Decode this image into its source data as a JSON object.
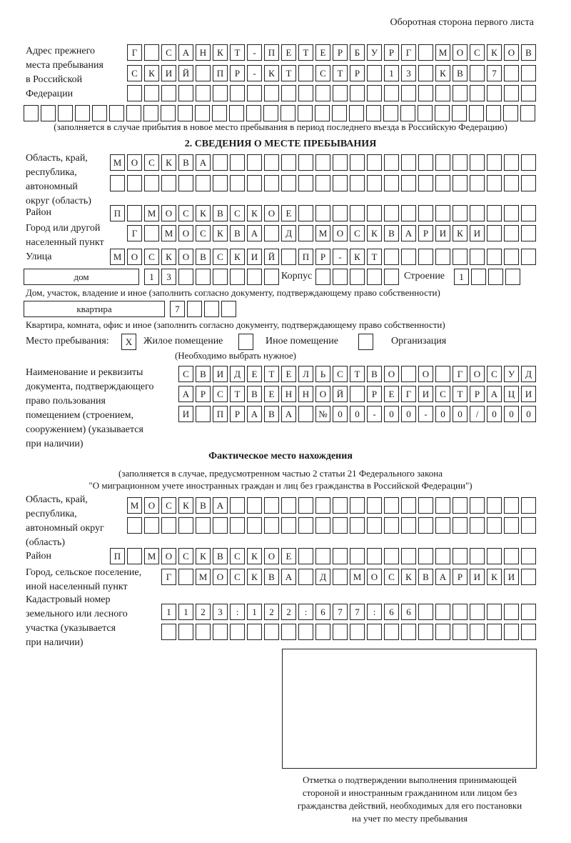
{
  "header": {
    "side_note": "Оборотная сторона первого листа"
  },
  "previous_address": {
    "label": [
      "Адрес прежнего",
      "места пребывания",
      "в Российской",
      "Федерации"
    ],
    "rows": [
      "Г САНКТ-ПЕТЕРБУРГ МОСКОВ",
      "СКИЙ ПР-КТ СТР 13 КВ 7",
      "",
      ""
    ],
    "note": "(заполняется в случае прибытия в новое место пребывания в период последнего въезда в Российскую Федерацию)"
  },
  "section2": {
    "title": "2. СВЕДЕНИЯ О МЕСТЕ ПРЕБЫВАНИЯ",
    "region_label": [
      "Область, край,",
      "республика,",
      "автономный",
      "округ (область)"
    ],
    "region_rows": [
      "МОСКВА",
      ""
    ],
    "district_label": "Район",
    "district": "П МОСКВСКОЕ",
    "city_label": [
      "Город или другой",
      "населенный пункт"
    ],
    "city": "Г МОСКВА Д МОСКВАРИКИ",
    "street_label": "Улица",
    "street": "МОСКОВСКИЙ ПР-КТ",
    "house_type": "дом",
    "house_number": "13",
    "korpus_label": "Корпус",
    "korpus": "",
    "building_label": "Строение",
    "building": "1",
    "house_note": "Дом, участок, владение и иное (заполнить согласно документу, подтверждающему право собственности)",
    "apt_type": "квартира",
    "apt_number": "7",
    "apt_note": "Квартира, комната, офис и иное (заполнить согласно документу, подтверждающему право собственности)",
    "stay_place_label": "Место пребывания:",
    "options": [
      {
        "label": "Жилое помещение",
        "mark": "X",
        "checked": true
      },
      {
        "label": "Иное помещение",
        "mark": "",
        "checked": false
      },
      {
        "label": "Организация",
        "mark": "",
        "checked": false
      }
    ],
    "choose_note": "(Необходимо выбрать нужное)",
    "document_label": [
      "Наименование и реквизиты",
      "документа, подтверждающего",
      "право пользования",
      "помещением (строением,",
      "сооружением) (указывается",
      "при наличии)"
    ],
    "document_rows": [
      "СВИДЕТЕЛЬСТВО О ГОСУД",
      "АРСТВЕННОЙ РЕГИСТРАЦИ",
      "И ПРАВА №00-00-00/000"
    ]
  },
  "actual": {
    "title": "Фактическое место нахождения",
    "note": [
      "(заполняется в случае, предусмотренном частью 2 статьи 21 Федерального закона",
      "\"О миграционном учете иностранных граждан и лиц без гражданства в Российской Федерации\")"
    ],
    "region_label": [
      "Область, край,",
      "республика,",
      "автономный округ",
      "(область)"
    ],
    "region_rows": [
      "МОСКВА",
      ""
    ],
    "district_label": "Район",
    "district": "П МОСКВСКОЕ",
    "city_label": [
      "Город, сельское поселение,",
      "иной населенный пункт"
    ],
    "city": "Г МОСКВА Д МОСКВАРИКИ",
    "cadastral_label": [
      "Кадастровый номер",
      "земельного или лесного",
      "участка (указывается",
      "при наличии)"
    ],
    "cadastral_rows": [
      "1123:122:677:66",
      ""
    ]
  },
  "stamp": {
    "caption": [
      "Отметка о подтверждении выполнения принимающей",
      "стороной и иностранным гражданином или лицом без",
      "гражданства действий, необходимых для его постановки",
      "на учет по месту пребывания"
    ]
  }
}
